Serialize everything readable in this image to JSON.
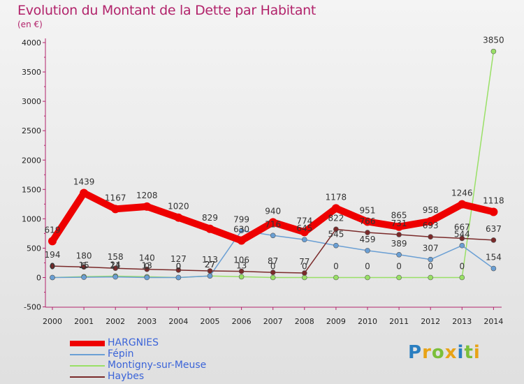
{
  "chart_data": {
    "type": "line",
    "title": "Evolution du Montant de la Dette par Habitant",
    "subtitle": "(en €)",
    "categories": [
      "2000",
      "2001",
      "2002",
      "2003",
      "2004",
      "2005",
      "2006",
      "2007",
      "2008",
      "2009",
      "2010",
      "2011",
      "2012",
      "2013",
      "2014"
    ],
    "ylim": [
      -500,
      4000
    ],
    "yticks": [
      -500,
      0,
      500,
      1000,
      1500,
      2000,
      2500,
      3000,
      3500,
      4000
    ],
    "grid": false,
    "legend_position": "bottom-left",
    "series": [
      {
        "name": "HARGNIES",
        "color": "#ee0000",
        "values": [
          619,
          1439,
          1167,
          1208,
          1020,
          829,
          630,
          940,
          774,
          1178,
          951,
          865,
          958,
          1246,
          1118
        ],
        "labels": [
          "619",
          "1439",
          "1167",
          "1208",
          "1020",
          "829",
          "630",
          "940",
          "774",
          "1178",
          "951",
          "865",
          "958",
          "1246",
          "1118"
        ]
      },
      {
        "name": "Fépin",
        "color": "#6a9fd4",
        "values": [
          0,
          5,
          11,
          0,
          0,
          27,
          799,
          716,
          645,
          545,
          459,
          389,
          307,
          544,
          154
        ],
        "labels": [
          "0",
          "5",
          "11",
          "0",
          "0",
          "27",
          "799",
          "716",
          "645",
          "545",
          "459",
          "389",
          "307",
          "544",
          "154"
        ]
      },
      {
        "name": "Montigny-sur-Meuse",
        "color": "#99e066",
        "values": [
          0,
          15,
          24,
          13,
          0,
          27,
          13,
          0,
          0,
          0,
          0,
          0,
          0,
          0,
          3850
        ],
        "labels": [
          "0",
          "15",
          "24",
          "13",
          "0",
          "27",
          "13",
          "0",
          "0",
          "0",
          "0",
          "0",
          "0",
          "0",
          "3850"
        ]
      },
      {
        "name": "Haybes",
        "color": "#7a2a2a",
        "values": [
          194,
          180,
          158,
          140,
          127,
          113,
          106,
          87,
          77,
          822,
          766,
          731,
          693,
          667,
          637
        ],
        "labels": [
          "194",
          "180",
          "158",
          "140",
          "127",
          "113",
          "106",
          "87",
          "77",
          "822",
          "766",
          "731",
          "693",
          "667",
          "637"
        ]
      }
    ]
  },
  "legend": {
    "items": [
      {
        "label": "HARGNIES",
        "color": "#ee0000"
      },
      {
        "label": "Fépin",
        "color": "#6a9fd4"
      },
      {
        "label": "Montigny-sur-Meuse",
        "color": "#99e066"
      },
      {
        "label": "Haybes",
        "color": "#7a2a2a"
      }
    ]
  },
  "logo": {
    "letters": [
      "P",
      "r",
      "o",
      "x",
      "i",
      "t",
      "i"
    ],
    "colors": [
      "#2a7ec0",
      "#e8a317",
      "#7bbf3a",
      "#e8a317",
      "#2a7ec0",
      "#7bbf3a",
      "#e8a317"
    ]
  }
}
